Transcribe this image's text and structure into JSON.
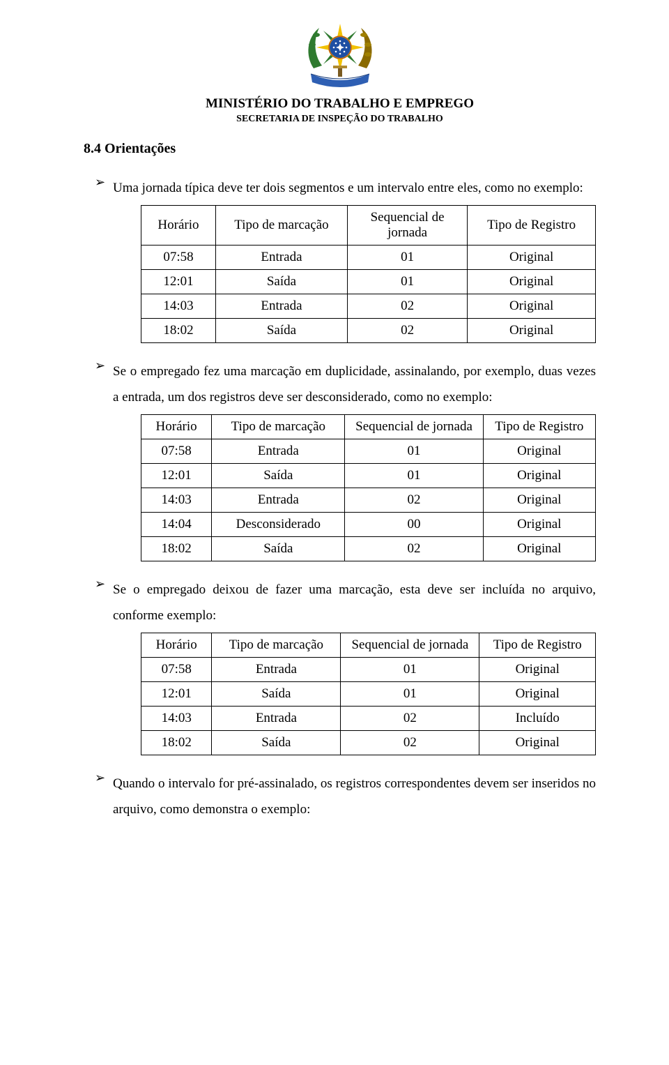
{
  "header": {
    "ministry": "MINISTÉRIO DO TRABALHO E EMPREGO",
    "secretariat": "SECRETARIA DE INSPEÇÃO DO TRABALHO"
  },
  "section": {
    "number_title": "8.4 Orientações"
  },
  "bullets": {
    "b1": "Uma jornada típica deve ter dois segmentos e um intervalo entre eles, como no exemplo:",
    "b2": "Se o empregado fez uma marcação em duplicidade, assinalando, por exemplo, duas vezes a entrada, um dos registros deve ser desconsiderado, como no exemplo:",
    "b3": "Se o empregado deixou de fazer uma marcação, esta deve ser incluída no arquivo, conforme exemplo:",
    "b4": "Quando o intervalo for pré-assinalado, os registros correspondentes devem ser inseridos no arquivo, como demonstra o exemplo:"
  },
  "table_headers": {
    "horario": "Horário",
    "tipo_marcacao": "Tipo de marcação",
    "seq_jornada_multiline1": "Sequencial de",
    "seq_jornada_multiline2": "jornada",
    "seq_jornada": "Sequencial de jornada",
    "tipo_registro": "Tipo de Registro"
  },
  "table1": {
    "rows": [
      {
        "horario": "07:58",
        "tipo": "Entrada",
        "seq": "01",
        "reg": "Original"
      },
      {
        "horario": "12:01",
        "tipo": "Saída",
        "seq": "01",
        "reg": "Original"
      },
      {
        "horario": "14:03",
        "tipo": "Entrada",
        "seq": "02",
        "reg": "Original"
      },
      {
        "horario": "18:02",
        "tipo": "Saída",
        "seq": "02",
        "reg": "Original"
      }
    ]
  },
  "table2": {
    "rows": [
      {
        "horario": "07:58",
        "tipo": "Entrada",
        "seq": "01",
        "reg": "Original",
        "bold_tipo": false
      },
      {
        "horario": "12:01",
        "tipo": "Saída",
        "seq": "01",
        "reg": "Original",
        "bold_tipo": false
      },
      {
        "horario": "14:03",
        "tipo": "Entrada",
        "seq": "02",
        "reg": "Original",
        "bold_tipo": false
      },
      {
        "horario": "14:04",
        "tipo": "Desconsiderado",
        "seq": "00",
        "reg": "Original",
        "bold_tipo": true
      },
      {
        "horario": "18:02",
        "tipo": "Saída",
        "seq": "02",
        "reg": "Original",
        "bold_tipo": false
      }
    ]
  },
  "table3": {
    "rows": [
      {
        "horario": "07:58",
        "tipo": "Entrada",
        "seq": "01",
        "reg": "Original",
        "bold_reg": false
      },
      {
        "horario": "12:01",
        "tipo": "Saída",
        "seq": "01",
        "reg": "Original",
        "bold_reg": false
      },
      {
        "horario": "14:03",
        "tipo": "Entrada",
        "seq": "02",
        "reg": "Incluído",
        "bold_reg": true
      },
      {
        "horario": "18:02",
        "tipo": "Saída",
        "seq": "02",
        "reg": "Original",
        "bold_reg": false
      }
    ]
  },
  "colors": {
    "text": "#000000",
    "background": "#ffffff",
    "border": "#000000",
    "emblem_blue": "#1e4fa3",
    "emblem_yellow": "#f2c200",
    "emblem_green": "#2f7a2f",
    "emblem_red": "#b03020",
    "emblem_ribbon": "#2e5fb3"
  }
}
